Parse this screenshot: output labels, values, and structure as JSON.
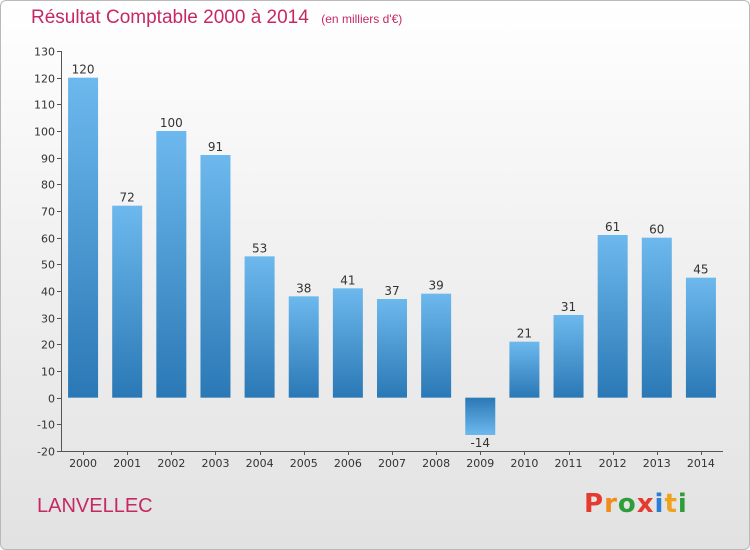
{
  "header": {
    "title": "Résultat Comptable 2000 à 2014",
    "unit": "(en milliers d'€)"
  },
  "footer": {
    "commune": "LANVELLEC",
    "logo": [
      "P",
      "r",
      "o",
      "x",
      "i",
      "t",
      "i"
    ],
    "logo_colors": [
      "#e63a2e",
      "#f08b1d",
      "#2f9e3a",
      "#e63a2e",
      "#2b7ed6",
      "#f0a21d",
      "#2f9e3a"
    ]
  },
  "colors": {
    "bar_light": "#6db9ee",
    "bar_dark": "#2a78b5",
    "title": "#c62864"
  },
  "chart_data": {
    "type": "bar",
    "title": "Résultat Comptable 2000 à 2014",
    "ylabel": "",
    "xlabel": "",
    "categories": [
      "2000",
      "2001",
      "2002",
      "2003",
      "2004",
      "2005",
      "2006",
      "2007",
      "2008",
      "2009",
      "2010",
      "2011",
      "2012",
      "2013",
      "2014"
    ],
    "values": [
      120,
      72,
      100,
      91,
      53,
      38,
      41,
      37,
      39,
      -14,
      21,
      31,
      61,
      60,
      45
    ],
    "value_labels": [
      "120",
      "72",
      "100",
      "91",
      "53",
      "38",
      "41",
      "37",
      "39",
      "-14",
      "21",
      "31",
      "61",
      "60",
      "45"
    ],
    "yticks": [
      130,
      120,
      110,
      100,
      90,
      80,
      70,
      60,
      50,
      40,
      30,
      20,
      10,
      0,
      -10,
      -20
    ],
    "ytick_labels": [
      "130",
      "120",
      "110",
      "100",
      "90",
      "80",
      "70",
      "60",
      "50",
      "40",
      "30",
      "20",
      "10",
      "0",
      "-10",
      "-20"
    ],
    "ylim": [
      -20,
      130
    ],
    "grid": false,
    "legend": "none"
  }
}
